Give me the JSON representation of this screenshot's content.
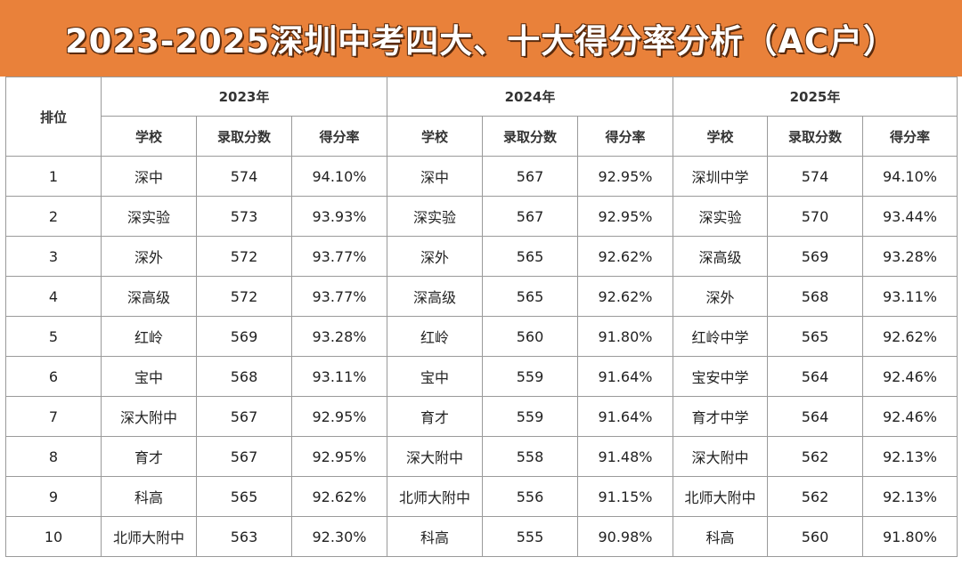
{
  "title": "2023-2025深圳中考四大、十大得分率分析（AC户）",
  "rank_header": "排位",
  "years": [
    "2023年",
    "2024年",
    "2025年"
  ],
  "columns": {
    "school": "学校",
    "score": "录取分数",
    "rate": "得分率"
  },
  "rows": [
    {
      "rank": "1",
      "y2023": {
        "school": "深中",
        "score": "574",
        "rate": "94.10%"
      },
      "y2024": {
        "school": "深中",
        "score": "567",
        "rate": "92.95%"
      },
      "y2025": {
        "school": "深圳中学",
        "score": "574",
        "rate": "94.10%"
      }
    },
    {
      "rank": "2",
      "y2023": {
        "school": "深实验",
        "score": "573",
        "rate": "93.93%"
      },
      "y2024": {
        "school": "深实验",
        "score": "567",
        "rate": "92.95%"
      },
      "y2025": {
        "school": "深实验",
        "score": "570",
        "rate": "93.44%"
      }
    },
    {
      "rank": "3",
      "y2023": {
        "school": "深外",
        "score": "572",
        "rate": "93.77%"
      },
      "y2024": {
        "school": "深外",
        "score": "565",
        "rate": "92.62%"
      },
      "y2025": {
        "school": "深高级",
        "score": "569",
        "rate": "93.28%"
      }
    },
    {
      "rank": "4",
      "y2023": {
        "school": "深高级",
        "score": "572",
        "rate": "93.77%"
      },
      "y2024": {
        "school": "深高级",
        "score": "565",
        "rate": "92.62%"
      },
      "y2025": {
        "school": "深外",
        "score": "568",
        "rate": "93.11%"
      }
    },
    {
      "rank": "5",
      "y2023": {
        "school": "红岭",
        "score": "569",
        "rate": "93.28%"
      },
      "y2024": {
        "school": "红岭",
        "score": "560",
        "rate": "91.80%"
      },
      "y2025": {
        "school": "红岭中学",
        "score": "565",
        "rate": "92.62%"
      }
    },
    {
      "rank": "6",
      "y2023": {
        "school": "宝中",
        "score": "568",
        "rate": "93.11%"
      },
      "y2024": {
        "school": "宝中",
        "score": "559",
        "rate": "91.64%"
      },
      "y2025": {
        "school": "宝安中学",
        "score": "564",
        "rate": "92.46%"
      }
    },
    {
      "rank": "7",
      "y2023": {
        "school": "深大附中",
        "score": "567",
        "rate": "92.95%"
      },
      "y2024": {
        "school": "育才",
        "score": "559",
        "rate": "91.64%"
      },
      "y2025": {
        "school": "育才中学",
        "score": "564",
        "rate": "92.46%"
      }
    },
    {
      "rank": "8",
      "y2023": {
        "school": "育才",
        "score": "567",
        "rate": "92.95%"
      },
      "y2024": {
        "school": "深大附中",
        "score": "558",
        "rate": "91.48%"
      },
      "y2025": {
        "school": "深大附中",
        "score": "562",
        "rate": "92.13%"
      }
    },
    {
      "rank": "9",
      "y2023": {
        "school": "科高",
        "score": "565",
        "rate": "92.62%"
      },
      "y2024": {
        "school": "北师大附中",
        "score": "556",
        "rate": "91.15%"
      },
      "y2025": {
        "school": "北师大附中",
        "score": "562",
        "rate": "92.13%"
      }
    },
    {
      "rank": "10",
      "y2023": {
        "school": "北师大附中",
        "score": "563",
        "rate": "92.30%"
      },
      "y2024": {
        "school": "科高",
        "score": "555",
        "rate": "90.98%"
      },
      "y2025": {
        "school": "科高",
        "score": "560",
        "rate": "91.80%"
      }
    }
  ]
}
